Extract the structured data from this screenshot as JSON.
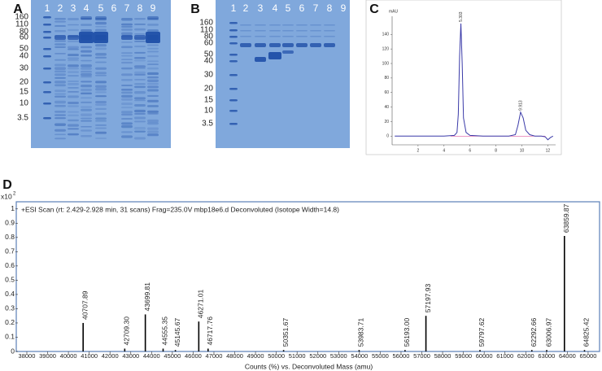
{
  "gels": [
    {
      "label": "A",
      "lanes": [
        "1",
        "2",
        "3",
        "4",
        "5",
        "6",
        "7",
        "8",
        "9"
      ],
      "markers": [
        "160",
        "110",
        "80",
        "60",
        "50",
        "40",
        "30",
        "20",
        "15",
        "10",
        "3.5"
      ]
    },
    {
      "label": "B",
      "lanes": [
        "1",
        "2",
        "3",
        "4",
        "5",
        "6",
        "7",
        "8",
        "9"
      ],
      "markers": [
        "160",
        "110",
        "80",
        "60",
        "50",
        "40",
        "30",
        "20",
        "15",
        "10",
        "3.5"
      ]
    }
  ],
  "chart_data": [
    {
      "type": "line",
      "label": "C",
      "y_label": "mAU",
      "x": [
        0.2,
        1,
        2,
        3,
        4,
        4.8,
        5.0,
        5.1,
        5.2,
        5.3,
        5.4,
        5.5,
        5.7,
        6,
        7,
        8,
        9,
        9.5,
        9.7,
        9.9,
        10.1,
        10.3,
        10.6,
        11,
        11.5,
        11.8,
        12,
        12.2,
        12.4
      ],
      "values": [
        0,
        0,
        0,
        0,
        0,
        1,
        5,
        30,
        110,
        155,
        100,
        25,
        5,
        1,
        0,
        0,
        0,
        2,
        15,
        33,
        25,
        8,
        2,
        0,
        0,
        -1,
        -5,
        -2,
        0
      ],
      "color": "#3a3aa8",
      "peaks": [
        {
          "x": 5.3,
          "y": 155,
          "label": "5.303"
        },
        {
          "x": 9.9,
          "y": 33,
          "label": "9.913"
        }
      ],
      "xlim": [
        0,
        12.6
      ],
      "xticks": [
        2,
        4,
        6,
        8,
        10,
        12
      ],
      "ylim": [
        -12,
        165
      ],
      "yticks": [
        0,
        20,
        40,
        60,
        80,
        100,
        120,
        140
      ]
    },
    {
      "type": "stem",
      "label": "D",
      "title": "+ESI Scan (rt: 2.429-2.928 min, 31 scans) Frag=235.0V mbp18e6.d  Deconvoluted (Isotope Width=14.8)",
      "x_label": "Counts (%) vs. Deconvoluted Mass (amu)",
      "y_multiplier": {
        "base": "x10",
        "exponent": "2"
      },
      "x": [
        40707.89,
        42709.3,
        43699.81,
        44555.35,
        45145.67,
        46271.01,
        46717.76,
        50351.67,
        53983.71,
        56193.0,
        57197.93,
        59797.62,
        62292.66,
        63006.97,
        63859.87,
        64825.42
      ],
      "x_labels": [
        "40707.89",
        "42709.30",
        "43699.81",
        "44555.35",
        "45145.67",
        "46271.01",
        "46717.76",
        "50351.67",
        "53983.71",
        "56193.00",
        "57197.93",
        "59797.62",
        "62292.66",
        "63006.97",
        "63859.87",
        "64825.42"
      ],
      "values": [
        0.2,
        0.02,
        0.26,
        0.02,
        0.01,
        0.21,
        0.02,
        0.01,
        0.01,
        0.01,
        0.25,
        0.01,
        0.01,
        0.01,
        0.81,
        0.01
      ],
      "color": "#000000",
      "xlim": [
        37570,
        65550
      ],
      "xticks": [
        38000,
        39000,
        40000,
        41000,
        42000,
        43000,
        44000,
        45000,
        46000,
        47000,
        48000,
        49000,
        50000,
        51000,
        52000,
        53000,
        54000,
        55000,
        56000,
        57000,
        58000,
        59000,
        60000,
        61000,
        62000,
        63000,
        64000,
        65000
      ],
      "ylim": [
        0,
        1.05
      ],
      "yticks": [
        0,
        0.1,
        0.2,
        0.3,
        0.4,
        0.5,
        0.6,
        0.7,
        0.8,
        0.9,
        1
      ]
    }
  ]
}
